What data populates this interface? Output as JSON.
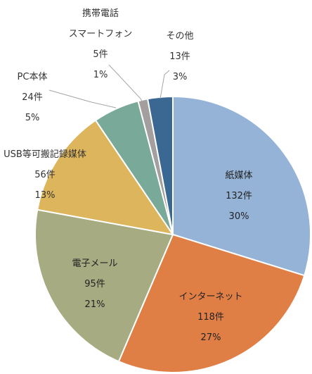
{
  "chart_data": {
    "type": "pie",
    "unit": "件",
    "slices": [
      {
        "label": "紙媒体",
        "count": 132,
        "count_text": "132件",
        "percent_text": "30%",
        "color": "#95b3d7"
      },
      {
        "label": "インターネット",
        "count": 118,
        "count_text": "118件",
        "percent_text": "27%",
        "color": "#e07f45"
      },
      {
        "label": "電子メール",
        "count": 95,
        "count_text": "95件",
        "percent_text": "21%",
        "color": "#a6ab81"
      },
      {
        "label": "USB等可搬記録媒体",
        "count": 56,
        "count_text": "56件",
        "percent_text": "13%",
        "color": "#dcb55c"
      },
      {
        "label": "PC本体",
        "count": 24,
        "count_text": "24件",
        "percent_text": "5%",
        "color": "#79a999"
      },
      {
        "label": "携帯電話\nスマートフォン",
        "count": 5,
        "count_text": "5件",
        "percent_text": "1%",
        "color": "#a39f9f"
      },
      {
        "label": "その他",
        "count": 13,
        "count_text": "13件",
        "percent_text": "3%",
        "color": "#3a6892"
      }
    ]
  }
}
